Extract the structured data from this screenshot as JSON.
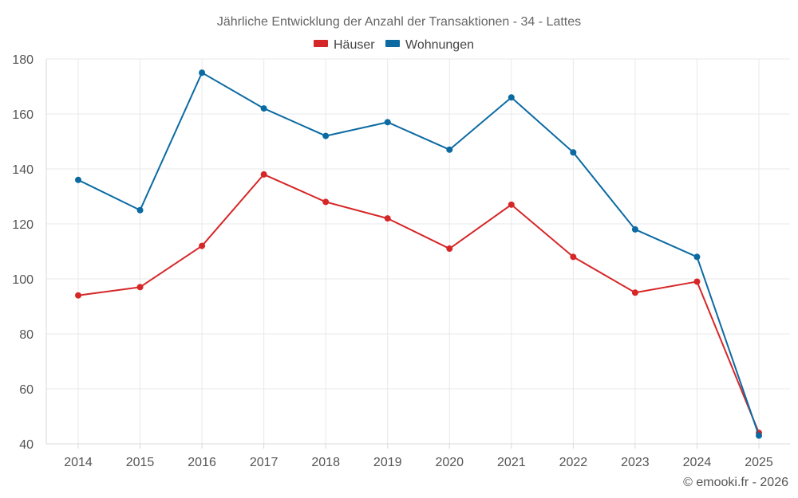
{
  "chart_data": {
    "type": "line",
    "title": "Jährliche Entwicklung der Anzahl der Transaktionen - 34 - Lattes",
    "categories": [
      "2014",
      "2015",
      "2016",
      "2017",
      "2018",
      "2019",
      "2020",
      "2021",
      "2022",
      "2023",
      "2024",
      "2025"
    ],
    "series": [
      {
        "name": "Häuser",
        "color": "#d62728",
        "values": [
          94,
          97,
          112,
          138,
          128,
          122,
          111,
          127,
          108,
          95,
          99,
          44
        ]
      },
      {
        "name": "Wohnungen",
        "color": "#0b6aa2",
        "values": [
          136,
          125,
          175,
          162,
          152,
          157,
          147,
          166,
          146,
          118,
          108,
          43
        ]
      }
    ],
    "ylim": [
      40,
      180
    ],
    "yticks": [
      40,
      60,
      80,
      100,
      120,
      140,
      160,
      180
    ],
    "xlabel": "",
    "ylabel": "",
    "grid": true,
    "legend_position": "top-center"
  },
  "credit": "© emooki.fr - 2026"
}
